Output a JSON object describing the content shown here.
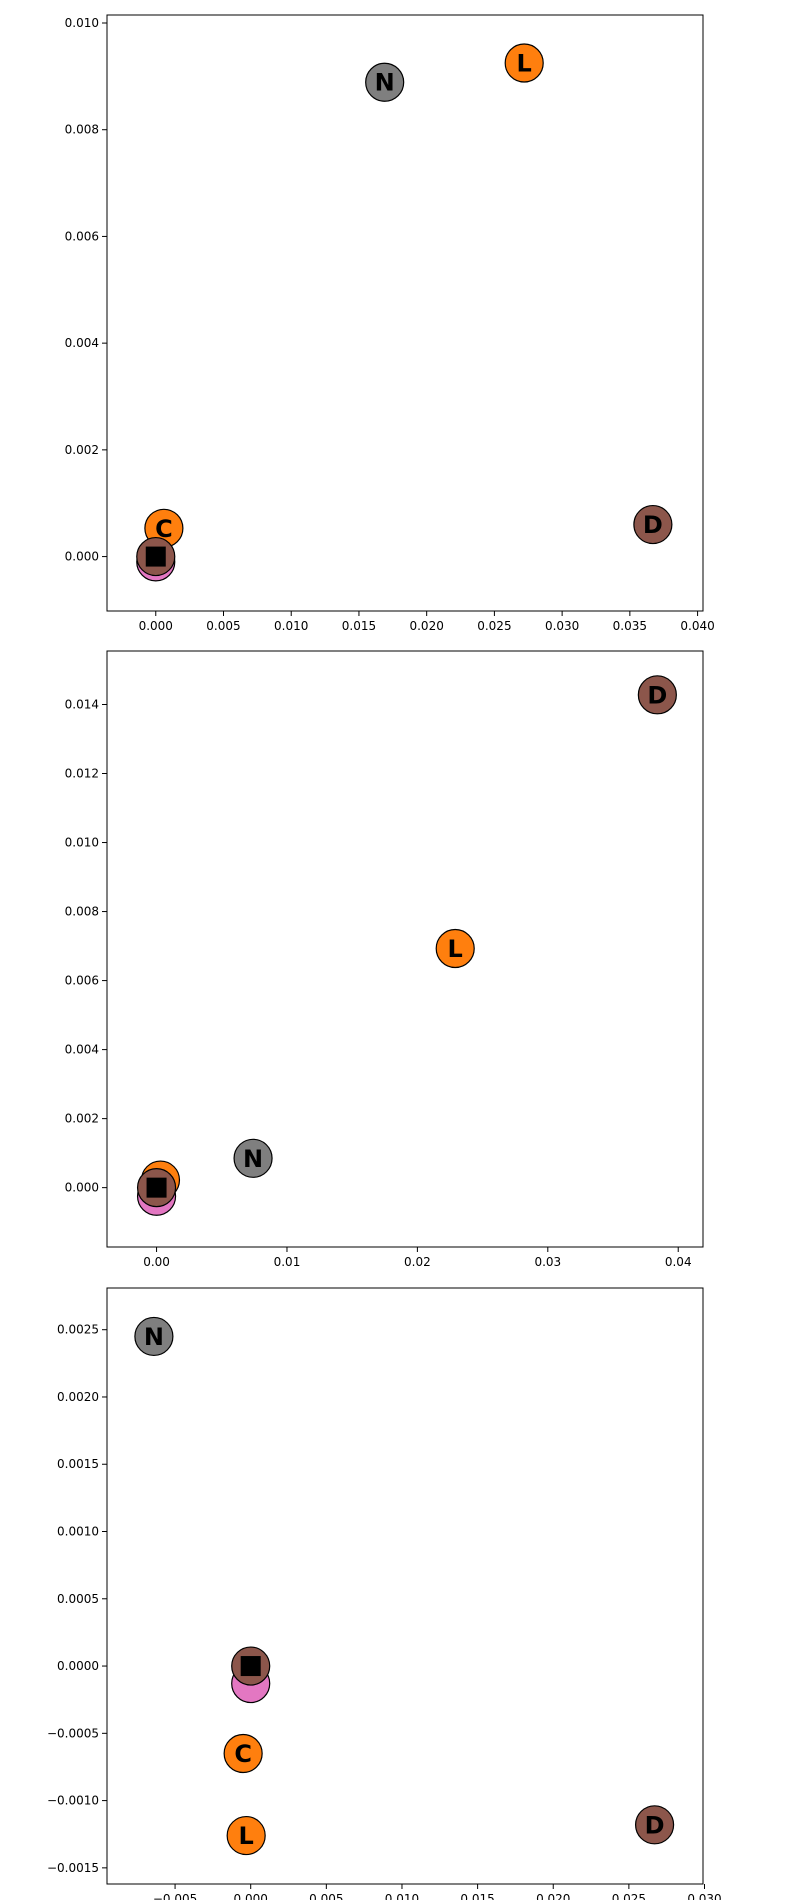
{
  "chart_data": [
    {
      "type": "scatter",
      "title": "",
      "xlabel": "",
      "ylabel": "",
      "xlim": [
        -0.0036,
        0.0404
      ],
      "ylim": [
        -0.00102,
        0.01015
      ],
      "xticks": [
        0.0,
        0.005,
        0.01,
        0.015,
        0.02,
        0.025,
        0.03,
        0.035,
        0.04
      ],
      "xtick_labels": [
        "0.000",
        "0.005",
        "0.010",
        "0.015",
        "0.020",
        "0.025",
        "0.030",
        "0.035",
        "0.040"
      ],
      "yticks": [
        0.0,
        0.002,
        0.004,
        0.006,
        0.008,
        0.01
      ],
      "ytick_labels": [
        "0.000",
        "0.002",
        "0.004",
        "0.006",
        "0.008",
        "0.010"
      ],
      "points": [
        {
          "label": "",
          "x": 0.0,
          "y": -0.0001,
          "color": "#e377c2"
        },
        {
          "label": "C",
          "x": 0.0006,
          "y": 0.00053,
          "color": "#ff7f0e"
        },
        {
          "label": "N",
          "x": 0.0169,
          "y": 0.00889,
          "color": "#7f7f7f"
        },
        {
          "label": "L",
          "x": 0.0272,
          "y": 0.00925,
          "color": "#ff7f0e"
        },
        {
          "label": "D",
          "x": 0.0367,
          "y": 0.0006,
          "color": "#8c564b"
        },
        {
          "label": "",
          "x": 0.0,
          "y": 0.0,
          "color": "#8c564b"
        }
      ],
      "square_marker": {
        "x": 0.0,
        "y": 0.0,
        "color": "#000000"
      }
    },
    {
      "type": "scatter",
      "title": "",
      "xlabel": "",
      "ylabel": "",
      "xlim": [
        -0.0038,
        0.0419
      ],
      "ylim": [
        -0.00172,
        0.01555
      ],
      "xticks": [
        0.0,
        0.01,
        0.02,
        0.03,
        0.04
      ],
      "xtick_labels": [
        "0.00",
        "0.01",
        "0.02",
        "0.03",
        "0.04"
      ],
      "yticks": [
        0.0,
        0.002,
        0.004,
        0.006,
        0.008,
        0.01,
        0.012,
        0.014
      ],
      "ytick_labels": [
        "0.000",
        "0.002",
        "0.004",
        "0.006",
        "0.008",
        "0.010",
        "0.012",
        "0.014"
      ],
      "points": [
        {
          "label": "",
          "x": 0.0,
          "y": -0.00025,
          "color": "#e377c2"
        },
        {
          "label": "C",
          "x": 0.0003,
          "y": 0.00022,
          "color": "#ff7f0e"
        },
        {
          "label": "N",
          "x": 0.0074,
          "y": 0.00085,
          "color": "#7f7f7f"
        },
        {
          "label": "L",
          "x": 0.0229,
          "y": 0.00693,
          "color": "#ff7f0e"
        },
        {
          "label": "D",
          "x": 0.0384,
          "y": 0.01428,
          "color": "#8c564b"
        },
        {
          "label": "",
          "x": 0.0,
          "y": 0.0,
          "color": "#8c564b"
        }
      ],
      "square_marker": {
        "x": 0.0,
        "y": 0.0,
        "color": "#000000"
      }
    },
    {
      "type": "scatter",
      "title": "",
      "xlabel": "",
      "ylabel": "",
      "xlim": [
        -0.0095,
        0.0299
      ],
      "ylim": [
        -0.00162,
        0.00281
      ],
      "xticks": [
        -0.005,
        0.0,
        0.005,
        0.01,
        0.015,
        0.02,
        0.025,
        0.03
      ],
      "xtick_labels": [
        "−0.005",
        "0.000",
        "0.005",
        "0.010",
        "0.015",
        "0.020",
        "0.025",
        "0.030"
      ],
      "yticks": [
        -0.0015,
        -0.001,
        -0.0005,
        0.0,
        0.0005,
        0.001,
        0.0015,
        0.002,
        0.0025
      ],
      "ytick_labels": [
        "−0.0015",
        "−0.0010",
        "−0.0005",
        "0.0000",
        "0.0005",
        "0.0010",
        "0.0015",
        "0.0020",
        "0.0025"
      ],
      "points": [
        {
          "label": "",
          "x": 0.0,
          "y": -0.00013,
          "color": "#e377c2"
        },
        {
          "label": "C",
          "x": -0.0005,
          "y": -0.00065,
          "color": "#ff7f0e"
        },
        {
          "label": "N",
          "x": -0.0064,
          "y": 0.00245,
          "color": "#7f7f7f"
        },
        {
          "label": "L",
          "x": -0.0003,
          "y": -0.00126,
          "color": "#ff7f0e"
        },
        {
          "label": "D",
          "x": 0.0267,
          "y": -0.00118,
          "color": "#8c564b"
        },
        {
          "label": "",
          "x": 0.0,
          "y": 0.0,
          "color": "#8c564b"
        }
      ],
      "square_marker": {
        "x": 0.0,
        "y": 0.0,
        "color": "#000000"
      }
    }
  ]
}
